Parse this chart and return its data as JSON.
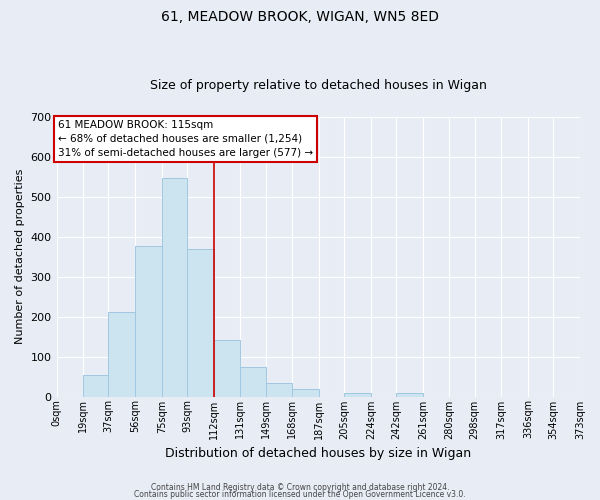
{
  "title": "61, MEADOW BROOK, WIGAN, WN5 8ED",
  "subtitle": "Size of property relative to detached houses in Wigan",
  "xlabel": "Distribution of detached houses by size in Wigan",
  "ylabel": "Number of detached properties",
  "bar_values": [
    0,
    54,
    212,
    376,
    546,
    369,
    141,
    75,
    33,
    19,
    0,
    8,
    0,
    8,
    0,
    0,
    0,
    0,
    0,
    0
  ],
  "bin_edges": [
    0,
    19,
    37,
    56,
    75,
    93,
    112,
    131,
    149,
    168,
    187,
    205,
    224,
    242,
    261,
    280,
    298,
    317,
    336,
    354,
    373
  ],
  "tick_labels": [
    "0sqm",
    "19sqm",
    "37sqm",
    "56sqm",
    "75sqm",
    "93sqm",
    "112sqm",
    "131sqm",
    "149sqm",
    "168sqm",
    "187sqm",
    "205sqm",
    "224sqm",
    "242sqm",
    "261sqm",
    "280sqm",
    "298sqm",
    "317sqm",
    "336sqm",
    "354sqm",
    "373sqm"
  ],
  "bar_color": "#cce4f0",
  "bar_edge_color": "#a0c8e0",
  "vline_x": 112,
  "vline_color": "#cc0000",
  "annotation_line1": "61 MEADOW BROOK: 115sqm",
  "annotation_line2": "← 68% of detached houses are smaller (1,254)",
  "annotation_line3": "31% of semi-detached houses are larger (577) →",
  "annotation_box_color": "#ffffff",
  "annotation_box_edge": "#cc0000",
  "ylim": [
    0,
    700
  ],
  "yticks": [
    0,
    100,
    200,
    300,
    400,
    500,
    600,
    700
  ],
  "footer_line1": "Contains HM Land Registry data © Crown copyright and database right 2024.",
  "footer_line2": "Contains public sector information licensed under the Open Government Licence v3.0.",
  "background_color": "#e8ecf5",
  "grid_color": "#ffffff",
  "title_fontsize": 10,
  "subtitle_fontsize": 9,
  "axis_label_fontsize": 8,
  "tick_fontsize": 7
}
